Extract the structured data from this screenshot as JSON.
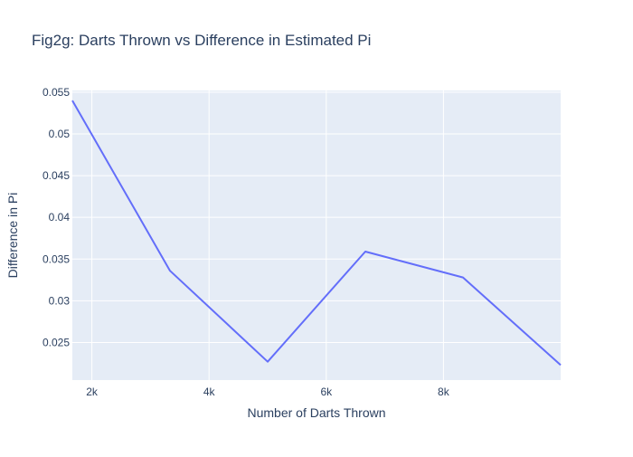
{
  "chart_data": {
    "type": "line",
    "title": "Fig2g: Darts Thrown vs Difference in Estimated Pi",
    "xlabel": "Number of Darts Thrown",
    "ylabel": "Difference in Pi",
    "xlim": [
      1667,
      10000
    ],
    "ylim": [
      0.0205,
      0.0552
    ],
    "x_ticks": [
      2000,
      4000,
      6000,
      8000
    ],
    "x_tick_labels": [
      "2k",
      "4k",
      "6k",
      "8k"
    ],
    "y_ticks": [
      0.025,
      0.03,
      0.035,
      0.04,
      0.045,
      0.05,
      0.055
    ],
    "y_tick_labels": [
      "0.025",
      "0.03",
      "0.035",
      "0.04",
      "0.045",
      "0.05",
      "0.055"
    ],
    "grid": true,
    "series": [
      {
        "x": [
          1667,
          3333,
          5000,
          6667,
          8333,
          10000
        ],
        "values": [
          0.054,
          0.0336,
          0.0227,
          0.0359,
          0.0328,
          0.0223
        ],
        "color": "#636efa"
      }
    ]
  },
  "colors": {
    "plot_background": "#e5ecf6",
    "grid": "#ffffff",
    "text": "#2a3f5f",
    "line": "#636efa"
  }
}
